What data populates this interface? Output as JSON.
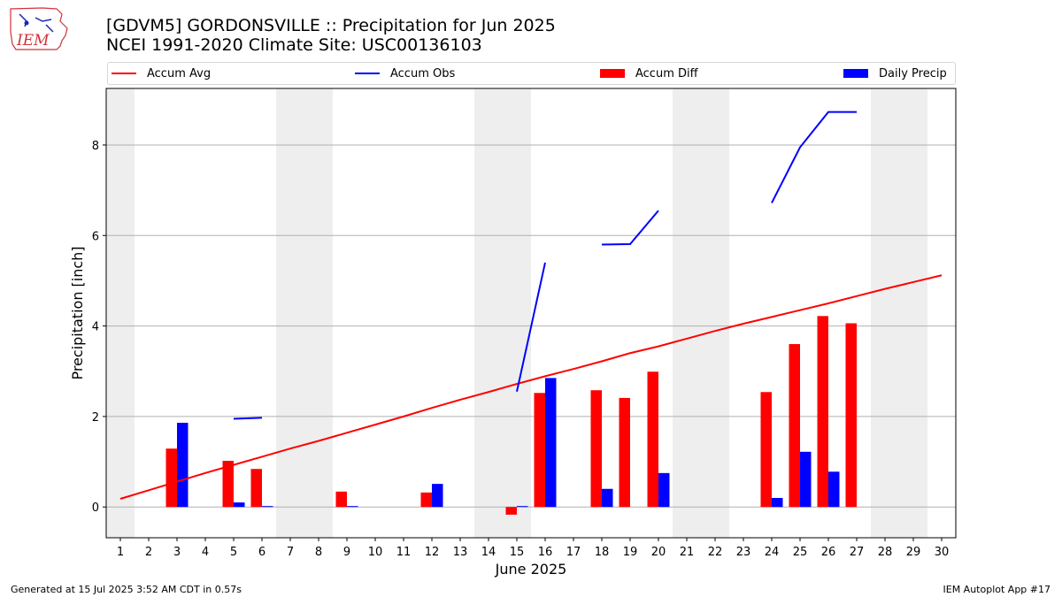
{
  "logo": {
    "text": "IEM"
  },
  "title_line1": "[GDVM5] GORDONSVILLE :: Precipitation for Jun 2025",
  "title_line2": "NCEI 1991-2020 Climate Site: USC00136103",
  "footer": {
    "left": "Generated at 15 Jul 2025 3:52 AM CDT in 0.57s",
    "right": "IEM Autoplot App #17"
  },
  "colors": {
    "accum_avg": "#ff0000",
    "accum_obs": "#0000ff",
    "accum_diff": "#ff0000",
    "daily_precip": "#0000ff",
    "weekend_band": "#eeeeee",
    "grid": "#b0b0b0"
  },
  "chart_data": {
    "type": "bar",
    "xlabel": "June 2025",
    "ylabel": "Precipitation [inch]",
    "xlim": [
      0.5,
      30.5
    ],
    "ylim": [
      -0.68,
      9.25
    ],
    "yticks": [
      0,
      2,
      4,
      6,
      8
    ],
    "x": [
      1,
      2,
      3,
      4,
      5,
      6,
      7,
      8,
      9,
      10,
      11,
      12,
      13,
      14,
      15,
      16,
      17,
      18,
      19,
      20,
      21,
      22,
      23,
      24,
      25,
      26,
      27,
      28,
      29,
      30
    ],
    "weekend_bands": [
      [
        0.5,
        1.5
      ],
      [
        6.5,
        8.5
      ],
      [
        13.5,
        15.5
      ],
      [
        20.5,
        22.5
      ],
      [
        27.5,
        29.5
      ]
    ],
    "grid": true,
    "legend_placement": "top",
    "series": [
      {
        "name": "Accum Avg",
        "kind": "line",
        "values": [
          0.18,
          0.37,
          0.56,
          0.75,
          0.93,
          1.11,
          1.29,
          1.46,
          1.64,
          1.82,
          2.0,
          2.19,
          2.37,
          2.54,
          2.72,
          2.89,
          3.05,
          3.22,
          3.4,
          3.55,
          3.72,
          3.89,
          4.05,
          4.2,
          4.35,
          4.5,
          4.66,
          4.82,
          4.97,
          5.12
        ]
      },
      {
        "name": "Accum Obs",
        "kind": "line",
        "values": [
          null,
          null,
          null,
          null,
          1.95,
          1.97,
          null,
          null,
          null,
          null,
          null,
          null,
          null,
          null,
          2.55,
          5.4,
          null,
          5.8,
          5.81,
          6.55,
          null,
          null,
          null,
          6.72,
          7.95,
          8.73,
          8.73,
          null,
          null,
          null
        ]
      },
      {
        "name": "Accum Diff",
        "kind": "bar",
        "values": [
          0,
          0,
          1.29,
          0,
          1.02,
          0.84,
          0,
          0,
          0.34,
          0,
          0,
          0.32,
          0,
          0,
          -0.17,
          2.52,
          0,
          2.58,
          2.41,
          2.99,
          0,
          0,
          0,
          2.54,
          3.6,
          4.22,
          4.06,
          0,
          0,
          0
        ]
      },
      {
        "name": "Daily Precip",
        "kind": "bar",
        "values": [
          0,
          0,
          1.86,
          0,
          0.1,
          0.02,
          0,
          0,
          0.02,
          0,
          0,
          0.51,
          0,
          0,
          0.02,
          2.85,
          0,
          0.4,
          0,
          0.75,
          0,
          0,
          0,
          0.2,
          1.22,
          0.78,
          0,
          0,
          0,
          0
        ]
      }
    ]
  }
}
